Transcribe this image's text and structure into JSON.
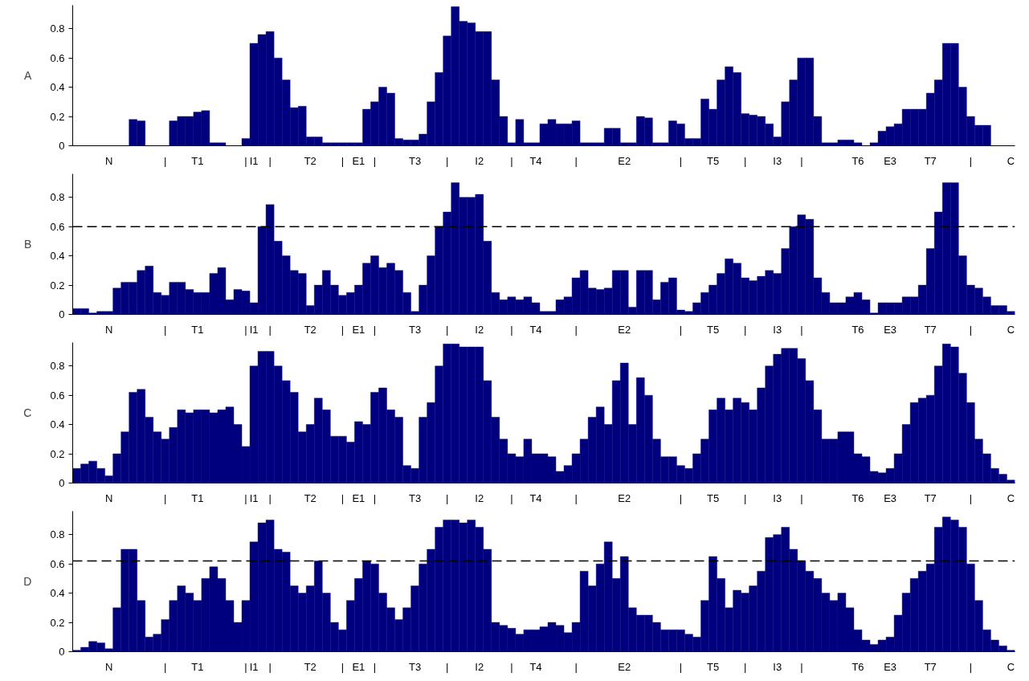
{
  "chart_data": [
    {
      "type": "bar",
      "ylabel": "A",
      "color": "#00007f",
      "ylim": [
        0,
        0.96
      ],
      "yticks": [
        0,
        0.2,
        0.4,
        0.6,
        0.8
      ],
      "grid": false,
      "categories": [
        null,
        null,
        null,
        null,
        "N",
        null,
        null,
        null,
        null,
        null,
        null,
        "|",
        null,
        null,
        null,
        "T1",
        null,
        null,
        null,
        null,
        null,
        "|",
        "I1",
        null,
        "|",
        null,
        null,
        null,
        null,
        "T2",
        null,
        null,
        null,
        "|",
        null,
        "E1",
        null,
        "|",
        null,
        null,
        null,
        null,
        "T3",
        null,
        null,
        null,
        "|",
        null,
        null,
        null,
        "I2",
        null,
        null,
        null,
        "|",
        null,
        null,
        "T4",
        null,
        null,
        null,
        null,
        "|",
        null,
        null,
        null,
        null,
        null,
        "E2",
        null,
        null,
        null,
        null,
        null,
        null,
        "|",
        null,
        null,
        null,
        "T5",
        null,
        null,
        null,
        "|",
        null,
        null,
        null,
        "I3",
        null,
        null,
        "|",
        null,
        null,
        null,
        null,
        null,
        null,
        "T6",
        null,
        null,
        null,
        "E3",
        null,
        null,
        null,
        null,
        "T7",
        null,
        null,
        null,
        null,
        "|",
        null,
        null,
        null,
        null,
        "C"
      ],
      "values": [
        0,
        0,
        0,
        0,
        0,
        0,
        0,
        0.18,
        0.17,
        0,
        0,
        0,
        0.17,
        0.2,
        0.2,
        0.23,
        0.24,
        0.02,
        0.02,
        0,
        0,
        0.05,
        0.7,
        0.76,
        0.78,
        0.6,
        0.45,
        0.26,
        0.27,
        0.06,
        0.06,
        0.02,
        0.02,
        0.02,
        0.02,
        0.02,
        0.25,
        0.3,
        0.4,
        0.36,
        0.05,
        0.04,
        0.04,
        0.08,
        0.3,
        0.5,
        0.75,
        0.95,
        0.85,
        0.84,
        0.78,
        0.78,
        0.45,
        0.2,
        0.02,
        0.18,
        0.02,
        0.02,
        0.15,
        0.18,
        0.15,
        0.15,
        0.17,
        0.02,
        0.02,
        0.02,
        0.12,
        0.12,
        0.02,
        0.02,
        0.2,
        0.19,
        0.02,
        0.02,
        0.17,
        0.15,
        0.05,
        0.05,
        0.32,
        0.25,
        0.45,
        0.54,
        0.5,
        0.22,
        0.21,
        0.2,
        0.15,
        0.06,
        0.3,
        0.45,
        0.6,
        0.6,
        0.2,
        0.02,
        0.02,
        0.04,
        0.04,
        0.02,
        0,
        0.02,
        0.1,
        0.13,
        0.15,
        0.25,
        0.25,
        0.25,
        0.36,
        0.45,
        0.7,
        0.7,
        0.4,
        0.2,
        0.14,
        0.14,
        0,
        0,
        0
      ]
    },
    {
      "type": "bar",
      "ylabel": "B",
      "color": "#00007f",
      "ylim": [
        0,
        0.96
      ],
      "yticks": [
        0,
        0.2,
        0.4,
        0.6,
        0.8
      ],
      "grid": false,
      "ref_lines": [
        {
          "axis": "y",
          "value": 0.6,
          "line_style": "dashed",
          "color": "#000000"
        }
      ],
      "categories": [
        null,
        null,
        null,
        null,
        "N",
        null,
        null,
        null,
        null,
        null,
        null,
        "|",
        null,
        null,
        null,
        "T1",
        null,
        null,
        null,
        null,
        null,
        "|",
        "I1",
        null,
        "|",
        null,
        null,
        null,
        null,
        "T2",
        null,
        null,
        null,
        "|",
        null,
        "E1",
        null,
        "|",
        null,
        null,
        null,
        null,
        "T3",
        null,
        null,
        null,
        "|",
        null,
        null,
        null,
        "I2",
        null,
        null,
        null,
        "|",
        null,
        null,
        "T4",
        null,
        null,
        null,
        null,
        "|",
        null,
        null,
        null,
        null,
        null,
        "E2",
        null,
        null,
        null,
        null,
        null,
        null,
        "|",
        null,
        null,
        null,
        "T5",
        null,
        null,
        null,
        "|",
        null,
        null,
        null,
        "I3",
        null,
        null,
        "|",
        null,
        null,
        null,
        null,
        null,
        null,
        "T6",
        null,
        null,
        null,
        "E3",
        null,
        null,
        null,
        null,
        "T7",
        null,
        null,
        null,
        null,
        "|",
        null,
        null,
        null,
        null,
        "C"
      ],
      "values": [
        0.04,
        0.04,
        0.01,
        0.02,
        0.02,
        0.18,
        0.22,
        0.22,
        0.3,
        0.33,
        0.15,
        0.13,
        0.22,
        0.22,
        0.17,
        0.15,
        0.15,
        0.28,
        0.32,
        0.1,
        0.17,
        0.16,
        0.08,
        0.6,
        0.75,
        0.5,
        0.4,
        0.3,
        0.28,
        0.06,
        0.2,
        0.3,
        0.2,
        0.13,
        0.15,
        0.2,
        0.35,
        0.4,
        0.32,
        0.35,
        0.3,
        0.15,
        0.02,
        0.2,
        0.4,
        0.6,
        0.7,
        0.9,
        0.8,
        0.8,
        0.82,
        0.5,
        0.15,
        0.1,
        0.12,
        0.1,
        0.12,
        0.08,
        0.02,
        0.02,
        0.1,
        0.12,
        0.25,
        0.3,
        0.18,
        0.17,
        0.18,
        0.3,
        0.3,
        0.05,
        0.3,
        0.3,
        0.1,
        0.22,
        0.25,
        0.03,
        0.02,
        0.08,
        0.15,
        0.2,
        0.28,
        0.38,
        0.35,
        0.25,
        0.23,
        0.26,
        0.3,
        0.28,
        0.45,
        0.6,
        0.68,
        0.65,
        0.25,
        0.15,
        0.08,
        0.08,
        0.12,
        0.15,
        0.1,
        0.01,
        0.08,
        0.08,
        0.08,
        0.12,
        0.12,
        0.2,
        0.45,
        0.7,
        0.9,
        0.9,
        0.4,
        0.2,
        0.18,
        0.12,
        0.06,
        0.06,
        0.02
      ]
    },
    {
      "type": "bar",
      "ylabel": "C",
      "color": "#00007f",
      "ylim": [
        0,
        0.96
      ],
      "yticks": [
        0,
        0.2,
        0.4,
        0.6,
        0.8
      ],
      "grid": false,
      "categories": [
        null,
        null,
        null,
        null,
        "N",
        null,
        null,
        null,
        null,
        null,
        null,
        "|",
        null,
        null,
        null,
        "T1",
        null,
        null,
        null,
        null,
        null,
        "|",
        "I1",
        null,
        "|",
        null,
        null,
        null,
        null,
        "T2",
        null,
        null,
        null,
        "|",
        null,
        "E1",
        null,
        "|",
        null,
        null,
        null,
        null,
        "T3",
        null,
        null,
        null,
        "|",
        null,
        null,
        null,
        "I2",
        null,
        null,
        null,
        "|",
        null,
        null,
        "T4",
        null,
        null,
        null,
        null,
        "|",
        null,
        null,
        null,
        null,
        null,
        "E2",
        null,
        null,
        null,
        null,
        null,
        null,
        "|",
        null,
        null,
        null,
        "T5",
        null,
        null,
        null,
        "|",
        null,
        null,
        null,
        "I3",
        null,
        null,
        "|",
        null,
        null,
        null,
        null,
        null,
        null,
        "T6",
        null,
        null,
        null,
        "E3",
        null,
        null,
        null,
        null,
        "T7",
        null,
        null,
        null,
        null,
        "|",
        null,
        null,
        null,
        null,
        "C"
      ],
      "values": [
        0.1,
        0.13,
        0.15,
        0.1,
        0.05,
        0.2,
        0.35,
        0.62,
        0.64,
        0.45,
        0.35,
        0.3,
        0.38,
        0.5,
        0.48,
        0.5,
        0.5,
        0.48,
        0.5,
        0.52,
        0.4,
        0.25,
        0.8,
        0.9,
        0.9,
        0.8,
        0.7,
        0.62,
        0.35,
        0.4,
        0.58,
        0.5,
        0.32,
        0.32,
        0.28,
        0.42,
        0.4,
        0.62,
        0.65,
        0.5,
        0.45,
        0.12,
        0.1,
        0.45,
        0.55,
        0.8,
        0.95,
        0.95,
        0.93,
        0.93,
        0.93,
        0.7,
        0.45,
        0.3,
        0.2,
        0.18,
        0.3,
        0.2,
        0.2,
        0.18,
        0.08,
        0.12,
        0.2,
        0.3,
        0.45,
        0.52,
        0.4,
        0.7,
        0.82,
        0.4,
        0.72,
        0.6,
        0.3,
        0.18,
        0.18,
        0.12,
        0.1,
        0.2,
        0.3,
        0.5,
        0.58,
        0.5,
        0.58,
        0.55,
        0.5,
        0.65,
        0.8,
        0.88,
        0.92,
        0.92,
        0.85,
        0.7,
        0.5,
        0.3,
        0.3,
        0.35,
        0.35,
        0.2,
        0.18,
        0.08,
        0.07,
        0.1,
        0.2,
        0.4,
        0.55,
        0.58,
        0.6,
        0.8,
        0.95,
        0.93,
        0.75,
        0.55,
        0.3,
        0.2,
        0.1,
        0.06,
        0.02
      ]
    },
    {
      "type": "bar",
      "ylabel": "D",
      "color": "#00007f",
      "ylim": [
        0,
        0.96
      ],
      "yticks": [
        0,
        0.2,
        0.4,
        0.6,
        0.8
      ],
      "grid": false,
      "ref_lines": [
        {
          "axis": "y",
          "value": 0.62,
          "line_style": "dashed",
          "color": "#000000"
        }
      ],
      "categories": [
        null,
        null,
        null,
        null,
        "N",
        null,
        null,
        null,
        null,
        null,
        null,
        "|",
        null,
        null,
        null,
        "T1",
        null,
        null,
        null,
        null,
        null,
        "|",
        "I1",
        null,
        "|",
        null,
        null,
        null,
        null,
        "T2",
        null,
        null,
        null,
        "|",
        null,
        "E1",
        null,
        "|",
        null,
        null,
        null,
        null,
        "T3",
        null,
        null,
        null,
        "|",
        null,
        null,
        null,
        "I2",
        null,
        null,
        null,
        "|",
        null,
        null,
        "T4",
        null,
        null,
        null,
        null,
        "|",
        null,
        null,
        null,
        null,
        null,
        "E2",
        null,
        null,
        null,
        null,
        null,
        null,
        "|",
        null,
        null,
        null,
        "T5",
        null,
        null,
        null,
        "|",
        null,
        null,
        null,
        "I3",
        null,
        null,
        "|",
        null,
        null,
        null,
        null,
        null,
        null,
        "T6",
        null,
        null,
        null,
        "E3",
        null,
        null,
        null,
        null,
        "T7",
        null,
        null,
        null,
        null,
        "|",
        null,
        null,
        null,
        null,
        "C"
      ],
      "values": [
        0.01,
        0.03,
        0.07,
        0.06,
        0.02,
        0.3,
        0.7,
        0.7,
        0.35,
        0.1,
        0.12,
        0.22,
        0.35,
        0.45,
        0.4,
        0.35,
        0.5,
        0.58,
        0.5,
        0.35,
        0.2,
        0.35,
        0.75,
        0.88,
        0.9,
        0.7,
        0.68,
        0.45,
        0.4,
        0.45,
        0.62,
        0.4,
        0.2,
        0.15,
        0.35,
        0.5,
        0.62,
        0.6,
        0.4,
        0.3,
        0.22,
        0.3,
        0.45,
        0.6,
        0.7,
        0.85,
        0.9,
        0.9,
        0.88,
        0.9,
        0.85,
        0.7,
        0.2,
        0.18,
        0.16,
        0.12,
        0.15,
        0.15,
        0.17,
        0.2,
        0.18,
        0.13,
        0.2,
        0.55,
        0.45,
        0.6,
        0.75,
        0.5,
        0.65,
        0.3,
        0.25,
        0.25,
        0.2,
        0.15,
        0.15,
        0.15,
        0.12,
        0.1,
        0.35,
        0.65,
        0.5,
        0.3,
        0.42,
        0.4,
        0.45,
        0.55,
        0.78,
        0.8,
        0.85,
        0.7,
        0.62,
        0.55,
        0.5,
        0.4,
        0.35,
        0.4,
        0.3,
        0.15,
        0.08,
        0.05,
        0.08,
        0.1,
        0.25,
        0.4,
        0.5,
        0.55,
        0.6,
        0.85,
        0.92,
        0.9,
        0.85,
        0.6,
        0.35,
        0.15,
        0.08,
        0.04,
        0.01
      ]
    }
  ]
}
